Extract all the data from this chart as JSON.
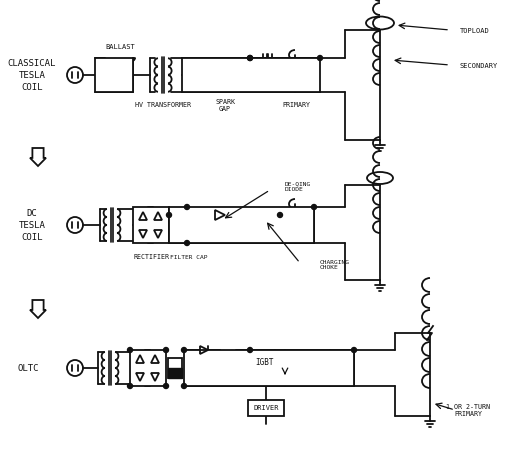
{
  "background": "#ffffff",
  "ink_color": "#111111",
  "fig_w": 5.13,
  "fig_h": 4.73,
  "dpi": 100,
  "sections": {
    "s1_label": [
      "CLASSICAL",
      "TESLA",
      "COIL"
    ],
    "s2_label": [
      "DC",
      "TESLA",
      "COIL"
    ],
    "s3_label": [
      "OLTC"
    ]
  },
  "annotations": {
    "ballast": "BALLAST",
    "hv_transformer": "HV TRANSFORMER",
    "spark_gap": "SPARK\nGAP",
    "primary": "PRIMARY",
    "topload": "TOPLOAD",
    "secondary": "SECONDARY",
    "rectifier": "RECTIFIER",
    "filter_cap": "FILTER CAP",
    "charging_choke": "CHARGING\nCHOKE",
    "de_qing": "DE-QING\nDIODE",
    "igbt": "IGBT",
    "driver": "DRIVER",
    "one_two_turn": "1 OR 2-TURN\nPRIMARY"
  }
}
